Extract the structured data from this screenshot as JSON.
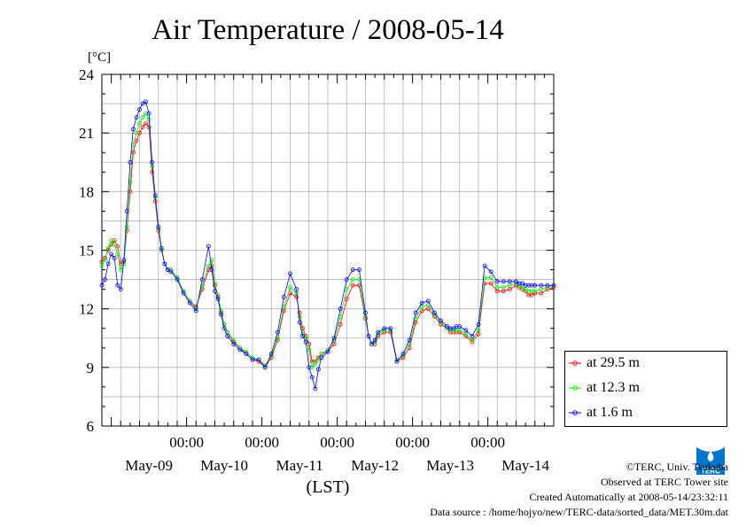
{
  "title": "Air Temperature / 2008-05-14",
  "chart_data": {
    "type": "line",
    "title": "Air Temperature / 2008-05-14",
    "ylabel": "[°C]",
    "xlabel": "(LST)",
    "ylim": [
      6,
      24
    ],
    "yticks": [
      6,
      9,
      12,
      15,
      18,
      21,
      24
    ],
    "x_time_ticks": [
      "00:00",
      "00:00",
      "00:00",
      "00:00",
      "00:00"
    ],
    "x_day_labels": [
      "May-09",
      "May-10",
      "May-11",
      "May-12",
      "May-13",
      "May-14"
    ],
    "x_unit": "hours since 2008-05-08 21:00",
    "x_range": [
      0,
      144
    ],
    "grid": true,
    "legend_position": "right",
    "series": [
      {
        "name": "at 29.5 m",
        "color": "#ff0000",
        "x": [
          0,
          1,
          2,
          3,
          4,
          5,
          6,
          7,
          8,
          9,
          10,
          11,
          12,
          13,
          14,
          15,
          16,
          17,
          18,
          19,
          20,
          21,
          22,
          24,
          26,
          28,
          30,
          32,
          34,
          35,
          36,
          37,
          38,
          39,
          40,
          42,
          44,
          46,
          48,
          50,
          52,
          54,
          56,
          58,
          60,
          62,
          63,
          64,
          65,
          66,
          67,
          68,
          69,
          70,
          72,
          74,
          76,
          78,
          80,
          82,
          84,
          85,
          86,
          87,
          88,
          90,
          92,
          94,
          96,
          98,
          100,
          102,
          104,
          106,
          108,
          110,
          111,
          112,
          113,
          114,
          116,
          118,
          120,
          122,
          124,
          126,
          128,
          130,
          132,
          133,
          134,
          135,
          136,
          137,
          138,
          140,
          142,
          144
        ],
        "values": [
          14.4,
          14.6,
          15.0,
          15.3,
          15.5,
          15.2,
          14.3,
          14.4,
          16.0,
          18.0,
          20.0,
          20.6,
          21.0,
          21.3,
          21.5,
          21.3,
          19.0,
          17.5,
          16.0,
          15.0,
          14.3,
          14.0,
          14.0,
          13.6,
          12.9,
          12.4,
          12.1,
          13.0,
          14.0,
          14.2,
          13.2,
          12.6,
          11.8,
          11.2,
          10.8,
          10.3,
          10.0,
          9.7,
          9.4,
          9.3,
          9.0,
          9.5,
          10.4,
          11.9,
          12.8,
          12.6,
          11.8,
          11.0,
          10.6,
          10.2,
          9.3,
          9.3,
          9.5,
          9.7,
          9.8,
          10.2,
          11.2,
          12.5,
          13.2,
          13.2,
          11.5,
          10.6,
          10.2,
          10.2,
          10.6,
          10.8,
          10.8,
          9.3,
          9.5,
          10.0,
          11.3,
          11.9,
          12.0,
          11.6,
          11.2,
          11.0,
          10.8,
          10.8,
          10.8,
          10.8,
          10.6,
          10.3,
          10.7,
          13.3,
          13.3,
          12.9,
          12.9,
          13.0,
          13.2,
          13.1,
          13.0,
          12.9,
          12.7,
          12.7,
          12.8,
          12.8,
          13.0,
          13.1
        ]
      },
      {
        "name": "at 12.3 m",
        "color": "#00ee00",
        "x": [
          0,
          1,
          2,
          3,
          4,
          5,
          6,
          7,
          8,
          9,
          10,
          11,
          12,
          13,
          14,
          15,
          16,
          17,
          18,
          19,
          20,
          21,
          22,
          24,
          26,
          28,
          30,
          32,
          34,
          35,
          36,
          37,
          38,
          39,
          40,
          42,
          44,
          46,
          48,
          50,
          52,
          54,
          56,
          58,
          60,
          62,
          63,
          64,
          65,
          66,
          67,
          68,
          69,
          70,
          72,
          74,
          76,
          78,
          80,
          82,
          84,
          85,
          86,
          87,
          88,
          90,
          92,
          94,
          96,
          98,
          100,
          102,
          104,
          106,
          108,
          110,
          111,
          112,
          113,
          114,
          116,
          118,
          120,
          122,
          124,
          126,
          128,
          130,
          132,
          133,
          134,
          135,
          136,
          137,
          138,
          140,
          142,
          144
        ],
        "values": [
          14.2,
          14.5,
          15.1,
          15.5,
          15.3,
          14.8,
          14.0,
          14.3,
          16.2,
          18.5,
          20.4,
          21.0,
          21.5,
          21.8,
          22.0,
          21.7,
          19.3,
          17.7,
          16.1,
          15.0,
          14.3,
          14.0,
          14.0,
          13.6,
          12.9,
          12.4,
          12.0,
          13.2,
          14.2,
          14.5,
          13.3,
          12.7,
          11.9,
          11.2,
          10.8,
          10.4,
          10.0,
          9.8,
          9.5,
          9.4,
          9.1,
          9.6,
          10.5,
          12.1,
          13.1,
          12.8,
          11.6,
          10.7,
          10.5,
          9.9,
          9.0,
          9.2,
          9.4,
          9.7,
          9.9,
          10.4,
          11.6,
          13.0,
          13.5,
          13.5,
          11.6,
          10.6,
          10.2,
          10.3,
          10.7,
          10.9,
          10.9,
          9.4,
          9.6,
          10.2,
          11.5,
          12.1,
          12.2,
          11.7,
          11.3,
          11.0,
          10.9,
          10.9,
          10.9,
          10.9,
          10.7,
          10.4,
          10.9,
          13.6,
          13.6,
          13.1,
          13.1,
          13.2,
          13.3,
          13.2,
          13.1,
          13.0,
          12.9,
          12.9,
          12.9,
          13.0,
          13.1,
          13.2
        ]
      },
      {
        "name": "at 1.6 m",
        "color": "#0000ff",
        "x": [
          0,
          1,
          2,
          3,
          4,
          5,
          6,
          7,
          8,
          9,
          10,
          11,
          12,
          13,
          14,
          15,
          16,
          17,
          18,
          19,
          20,
          21,
          22,
          24,
          26,
          28,
          30,
          32,
          34,
          35,
          36,
          37,
          38,
          39,
          40,
          42,
          44,
          46,
          48,
          50,
          52,
          54,
          56,
          58,
          60,
          62,
          63,
          64,
          65,
          66,
          67,
          68,
          69,
          70,
          72,
          74,
          76,
          78,
          80,
          82,
          84,
          85,
          86,
          87,
          88,
          90,
          92,
          94,
          96,
          98,
          100,
          102,
          104,
          106,
          108,
          110,
          111,
          112,
          113,
          114,
          116,
          118,
          120,
          122,
          124,
          126,
          128,
          130,
          132,
          133,
          134,
          135,
          136,
          137,
          138,
          140,
          142,
          144
        ],
        "values": [
          13.2,
          13.5,
          14.3,
          14.8,
          14.6,
          13.2,
          13.0,
          14.5,
          17.0,
          19.5,
          21.2,
          21.8,
          22.2,
          22.5,
          22.6,
          22.0,
          19.5,
          17.8,
          16.2,
          15.1,
          14.3,
          14.0,
          13.9,
          13.5,
          12.8,
          12.3,
          11.9,
          13.5,
          15.2,
          14.0,
          12.9,
          12.5,
          11.7,
          11.0,
          10.6,
          10.2,
          9.9,
          9.7,
          9.4,
          9.4,
          9.0,
          9.7,
          10.8,
          12.6,
          13.8,
          13.0,
          11.3,
          10.6,
          10.3,
          9.0,
          8.5,
          7.9,
          8.9,
          9.5,
          9.8,
          10.5,
          12.0,
          13.5,
          14.0,
          14.0,
          11.8,
          10.6,
          10.2,
          10.4,
          10.8,
          11.0,
          11.0,
          9.3,
          9.7,
          10.4,
          11.8,
          12.3,
          12.4,
          11.8,
          11.4,
          11.1,
          11.0,
          11.0,
          11.1,
          11.1,
          10.9,
          10.6,
          11.2,
          14.2,
          13.9,
          13.4,
          13.4,
          13.4,
          13.4,
          13.3,
          13.3,
          13.2,
          13.2,
          13.2,
          13.2,
          13.2,
          13.2,
          13.2
        ]
      }
    ]
  },
  "legend": {
    "items": [
      {
        "label": "at 29.5 m",
        "color": "#ff0000"
      },
      {
        "label": "at 12.3 m",
        "color": "#00ee00"
      },
      {
        "label": "at 1.6 m",
        "color": "#0000ff"
      }
    ]
  },
  "credits": {
    "line1": "©TERC, Univ. Tsukuba",
    "line2": "Observed at TERC Tower site",
    "line3": "Created Automatically at 2008-05-14/23:32:11",
    "line4": "Data source : /home/hojyo/new/TERC-data/sorted_data/MET.30m.dat"
  },
  "logo": {
    "text": "TERC",
    "color": "#0077cc"
  }
}
